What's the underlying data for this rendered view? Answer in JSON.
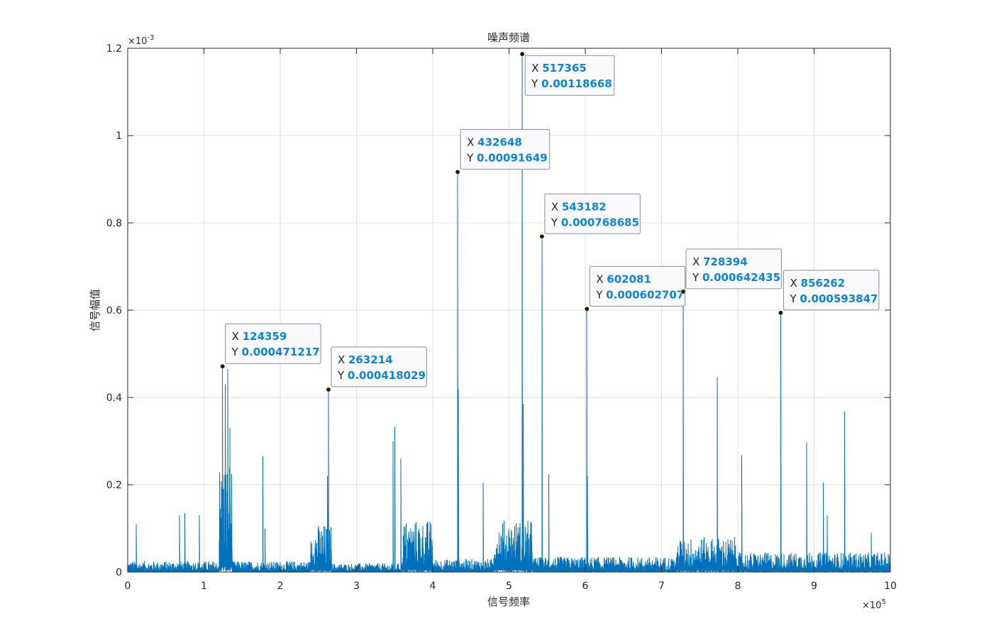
{
  "chart_data": {
    "type": "line",
    "title": "噪声频谱",
    "xlabel": "信号频率",
    "ylabel": "信号幅值",
    "x_exponent": {
      "base": "×10",
      "power": "5"
    },
    "y_exponent": {
      "base": "×10",
      "power": "-3"
    },
    "xlim": [
      0,
      1000000
    ],
    "ylim": [
      0,
      0.0012
    ],
    "grid": true,
    "series_color": "#0072bd",
    "x_ticks": [
      {
        "value": 0,
        "label": "0"
      },
      {
        "value": 100000,
        "label": "1"
      },
      {
        "value": 200000,
        "label": "2"
      },
      {
        "value": 300000,
        "label": "3"
      },
      {
        "value": 400000,
        "label": "4"
      },
      {
        "value": 500000,
        "label": "5"
      },
      {
        "value": 600000,
        "label": "6"
      },
      {
        "value": 700000,
        "label": "7"
      },
      {
        "value": 800000,
        "label": "8"
      },
      {
        "value": 900000,
        "label": "9"
      },
      {
        "value": 1000000,
        "label": "10"
      }
    ],
    "y_ticks": [
      {
        "value": 0,
        "label": "0"
      },
      {
        "value": 0.0002,
        "label": "0.2"
      },
      {
        "value": 0.0004,
        "label": "0.4"
      },
      {
        "value": 0.0006,
        "label": "0.6"
      },
      {
        "value": 0.0008,
        "label": "0.8"
      },
      {
        "value": 0.001,
        "label": "1"
      },
      {
        "value": 0.0012,
        "label": "1.2"
      }
    ],
    "peaks": [
      {
        "x": 124359,
        "y": 0.000471217
      },
      {
        "x": 263214,
        "y": 0.000418029
      },
      {
        "x": 432648,
        "y": 0.00091649
      },
      {
        "x": 517365,
        "y": 0.00118668
      },
      {
        "x": 543182,
        "y": 0.000768685
      },
      {
        "x": 602081,
        "y": 0.000602707
      },
      {
        "x": 728394,
        "y": 0.000642435
      },
      {
        "x": 856262,
        "y": 0.000593847
      }
    ],
    "datatips": [
      {
        "x_key": "X",
        "y_key": "Y",
        "x_text": "124359",
        "y_text": "0.000471217"
      },
      {
        "x_key": "X",
        "y_key": "Y",
        "x_text": "263214",
        "y_text": "0.000418029"
      },
      {
        "x_key": "X",
        "y_key": "Y",
        "x_text": "432648",
        "y_text": "0.00091649"
      },
      {
        "x_key": "X",
        "y_key": "Y",
        "x_text": "517365",
        "y_text": "0.00118668"
      },
      {
        "x_key": "X",
        "y_key": "Y",
        "x_text": "543182",
        "y_text": "0.000768685"
      },
      {
        "x_key": "X",
        "y_key": "Y",
        "x_text": "602081",
        "y_text": "0.000602707"
      },
      {
        "x_key": "X",
        "y_key": "Y",
        "x_text": "728394",
        "y_text": "0.000642435"
      },
      {
        "x_key": "X",
        "y_key": "Y",
        "x_text": "856262",
        "y_text": "0.000593847"
      }
    ],
    "secondary_spikes": [
      {
        "x": 128000,
        "y": 0.00043
      },
      {
        "x": 131000,
        "y": 0.000465
      },
      {
        "x": 134000,
        "y": 0.00033
      },
      {
        "x": 177000,
        "y": 0.000265
      },
      {
        "x": 180000,
        "y": 0.0001
      },
      {
        "x": 262000,
        "y": 0.00022
      },
      {
        "x": 348000,
        "y": 0.0003
      },
      {
        "x": 350000,
        "y": 0.000333
      },
      {
        "x": 358000,
        "y": 0.00026
      },
      {
        "x": 433500,
        "y": 0.00042
      },
      {
        "x": 466000,
        "y": 0.000205
      },
      {
        "x": 518500,
        "y": 0.000385
      },
      {
        "x": 552000,
        "y": 0.000225
      },
      {
        "x": 602800,
        "y": 0.00022
      },
      {
        "x": 773000,
        "y": 0.000447
      },
      {
        "x": 805000,
        "y": 0.000268
      },
      {
        "x": 890000,
        "y": 0.000297
      },
      {
        "x": 912000,
        "y": 0.000205
      },
      {
        "x": 940000,
        "y": 0.000368
      },
      {
        "x": 68000,
        "y": 0.00013
      },
      {
        "x": 75000,
        "y": 0.000135
      },
      {
        "x": 94000,
        "y": 0.00013
      },
      {
        "x": 11000,
        "y": 0.00011
      },
      {
        "x": 917000,
        "y": 0.00013
      },
      {
        "x": 975000,
        "y": 9e-05
      }
    ],
    "noise_bands": [
      {
        "x_start": 0,
        "x_end": 120000,
        "y_max": 2.5e-05
      },
      {
        "x_start": 120000,
        "x_end": 137000,
        "y_max": 0.00026
      },
      {
        "x_start": 137000,
        "x_end": 240000,
        "y_max": 2.5e-05
      },
      {
        "x_start": 240000,
        "x_end": 268000,
        "y_max": 0.00011
      },
      {
        "x_start": 268000,
        "x_end": 360000,
        "y_max": 2e-05
      },
      {
        "x_start": 360000,
        "x_end": 400000,
        "y_max": 0.00012
      },
      {
        "x_start": 400000,
        "x_end": 480000,
        "y_max": 3e-05
      },
      {
        "x_start": 480000,
        "x_end": 532000,
        "y_max": 0.00012
      },
      {
        "x_start": 532000,
        "x_end": 720000,
        "y_max": 3.5e-05
      },
      {
        "x_start": 720000,
        "x_end": 800000,
        "y_max": 8e-05
      },
      {
        "x_start": 800000,
        "x_end": 1000000,
        "y_max": 4.5e-05
      }
    ]
  }
}
